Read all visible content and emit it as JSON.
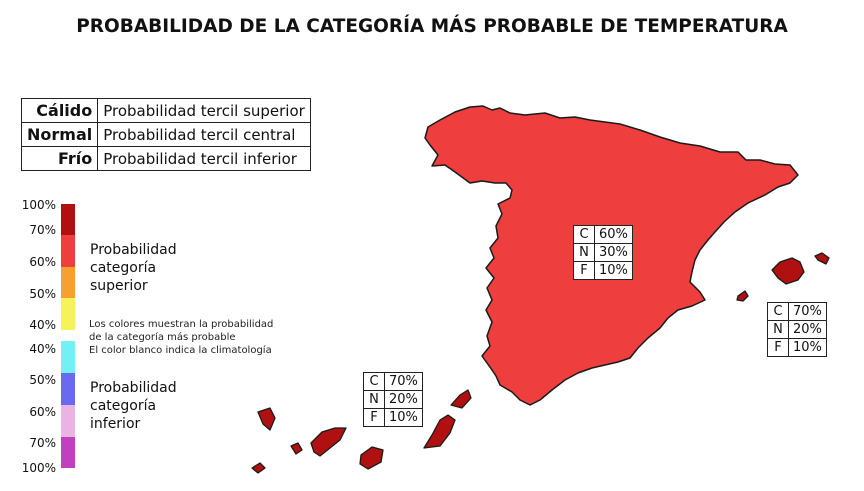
{
  "title": "PROBABILIDAD DE LA CATEGORÍA MÁS PROBABLE DE TEMPERATURA",
  "legend_table": [
    {
      "category": "Cálido",
      "description": "Probabilidad tercil superior"
    },
    {
      "category": "Normal",
      "description": "Probabilidad tercil central"
    },
    {
      "category": "Frío",
      "description": "Probabilidad tercil inferior"
    }
  ],
  "color_scale": {
    "segments": [
      {
        "color": "#b01010"
      },
      {
        "color": "#ee3e3e"
      },
      {
        "color": "#f5a030"
      },
      {
        "color": "#f6f35a"
      },
      {
        "color": "#72f0f4"
      },
      {
        "color": "#6a6af0"
      },
      {
        "color": "#eab3e4"
      },
      {
        "color": "#c040c0"
      }
    ],
    "ticks": [
      "100%",
      "70%",
      "60%",
      "50%",
      "40%",
      "40%",
      "50%",
      "60%",
      "70%",
      "100%"
    ],
    "upper_label": "Probabilidad categoría superior",
    "lower_label": "Probabilidad categoría inferior",
    "note_lines": [
      "Los colores muestran la probabilidad",
      "de la categoría más probable",
      "El color blanco indica la climatología"
    ]
  },
  "regions": {
    "peninsula": {
      "color": "#ee3e3e",
      "probabilities": [
        {
          "cat": "C",
          "value": "60%"
        },
        {
          "cat": "N",
          "value": "30%"
        },
        {
          "cat": "F",
          "value": "10%"
        }
      ]
    },
    "baleares": {
      "color": "#b01010",
      "probabilities": [
        {
          "cat": "C",
          "value": "70%"
        },
        {
          "cat": "N",
          "value": "20%"
        },
        {
          "cat": "F",
          "value": "10%"
        }
      ]
    },
    "canarias": {
      "color": "#b01010",
      "probabilities": [
        {
          "cat": "C",
          "value": "70%"
        },
        {
          "cat": "N",
          "value": "20%"
        },
        {
          "cat": "F",
          "value": "10%"
        }
      ]
    }
  }
}
